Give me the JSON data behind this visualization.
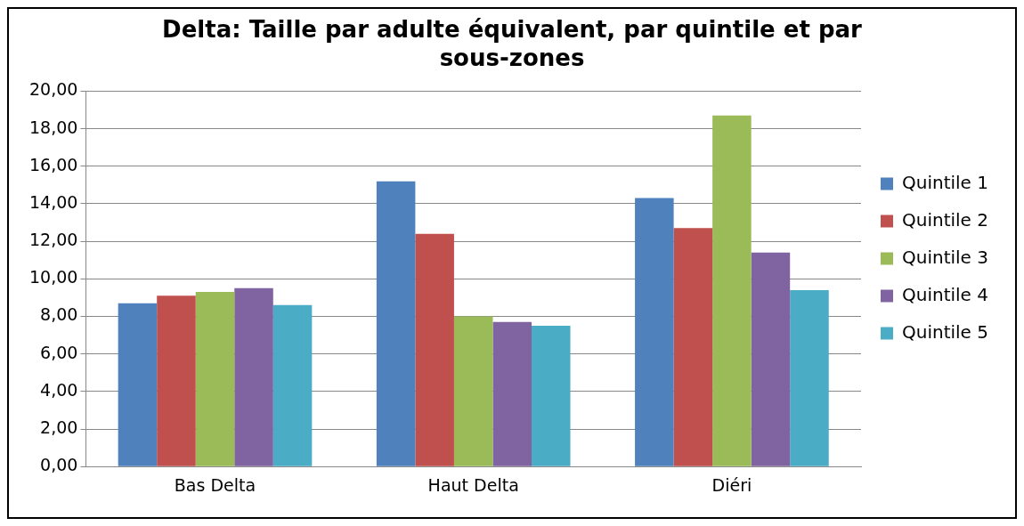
{
  "chart_data": {
    "type": "bar",
    "title": "Delta: Taille par adulte équivalent, par quintile et par sous-zones",
    "categories": [
      "Bas Delta",
      "Haut Delta",
      "Diéri"
    ],
    "series": [
      {
        "name": "Quintile 1",
        "color": "#4f81bd",
        "values": [
          8.7,
          15.2,
          14.3
        ]
      },
      {
        "name": "Quintile 2",
        "color": "#c0504d",
        "values": [
          9.1,
          12.4,
          12.7
        ]
      },
      {
        "name": "Quintile 3",
        "color": "#9bbb59",
        "values": [
          9.3,
          8.0,
          18.7
        ]
      },
      {
        "name": "Quintile 4",
        "color": "#8064a2",
        "values": [
          9.5,
          7.7,
          11.4
        ]
      },
      {
        "name": "Quintile 5",
        "color": "#4bacc6",
        "values": [
          8.6,
          7.5,
          9.4
        ]
      }
    ],
    "ylim": [
      0,
      20
    ],
    "yticks": [
      {
        "value": 0,
        "label": "0,00"
      },
      {
        "value": 2,
        "label": "2,00"
      },
      {
        "value": 4,
        "label": "4,00"
      },
      {
        "value": 6,
        "label": "6,00"
      },
      {
        "value": 8,
        "label": "8,00"
      },
      {
        "value": 10,
        "label": "10,00"
      },
      {
        "value": 12,
        "label": "12,00"
      },
      {
        "value": 14,
        "label": "14,00"
      },
      {
        "value": 16,
        "label": "16,00"
      },
      {
        "value": 18,
        "label": "18,00"
      },
      {
        "value": 20,
        "label": "20,00"
      }
    ],
    "grid": "y",
    "legend": "right"
  }
}
